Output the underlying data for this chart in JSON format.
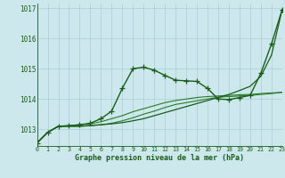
{
  "title": "Graphe pression niveau de la mer (hPa)",
  "xlim": [
    0,
    23
  ],
  "ylim": [
    1012.45,
    1017.15
  ],
  "xticks": [
    0,
    1,
    2,
    3,
    4,
    5,
    6,
    7,
    8,
    9,
    10,
    11,
    12,
    13,
    14,
    15,
    16,
    17,
    18,
    19,
    20,
    21,
    22,
    23
  ],
  "yticks": [
    1013,
    1014,
    1015,
    1016,
    1017
  ],
  "bg_color": "#cce8ec",
  "grid_color": "#aacdd4",
  "line_color_dark": "#1a5c1a",
  "line_color_med": "#2a7a2a",
  "series": [
    {
      "y": [
        1012.55,
        1012.9,
        1013.1,
        1013.1,
        1013.1,
        1013.13,
        1013.15,
        1013.2,
        1013.28,
        1013.38,
        1013.5,
        1013.6,
        1013.72,
        1013.82,
        1013.88,
        1013.94,
        1014.0,
        1014.06,
        1014.08,
        1014.1,
        1014.12,
        1014.15,
        1014.18,
        1014.22
      ],
      "marker": null,
      "lw": 0.8,
      "color": "#2a7a2a",
      "ms": 0
    },
    {
      "y": [
        1012.55,
        1012.9,
        1013.1,
        1013.12,
        1013.15,
        1013.18,
        1013.25,
        1013.35,
        1013.45,
        1013.58,
        1013.68,
        1013.78,
        1013.88,
        1013.95,
        1014.0,
        1014.05,
        1014.08,
        1014.1,
        1014.12,
        1014.14,
        1014.15,
        1014.18,
        1014.2,
        1014.22
      ],
      "marker": null,
      "lw": 0.8,
      "color": "#2a7a2a",
      "ms": 0
    },
    {
      "y": [
        1012.55,
        1012.9,
        1013.1,
        1013.12,
        1013.15,
        1013.2,
        1013.35,
        1013.6,
        1014.35,
        1015.0,
        1015.05,
        1014.95,
        1014.78,
        1014.62,
        1014.6,
        1014.58,
        1014.35,
        1014.0,
        1013.98,
        1014.05,
        1014.12,
        1014.85,
        1015.82,
        1016.95
      ],
      "marker": "+",
      "lw": 1.0,
      "color": "#1a5c1a",
      "ms": 4
    },
    {
      "y": [
        1012.55,
        1012.9,
        1013.1,
        1013.1,
        1013.1,
        1013.12,
        1013.15,
        1013.18,
        1013.22,
        1013.28,
        1013.35,
        1013.45,
        1013.55,
        1013.65,
        1013.75,
        1013.85,
        1013.95,
        1014.05,
        1014.15,
        1014.28,
        1014.42,
        1014.75,
        1015.45,
        1016.95
      ],
      "marker": null,
      "lw": 0.9,
      "color": "#1a5c1a",
      "ms": 0
    }
  ]
}
